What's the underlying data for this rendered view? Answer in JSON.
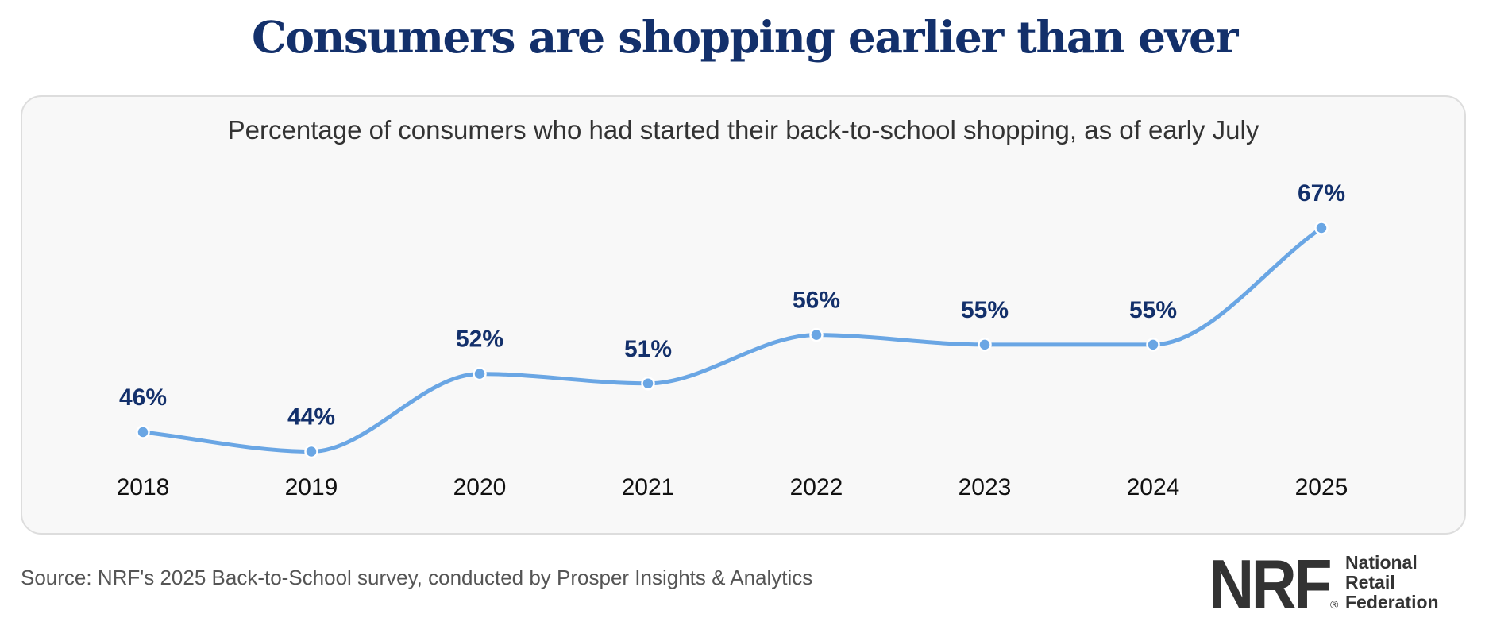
{
  "header": {
    "title": "Consumers are shopping earlier than ever"
  },
  "chart_data": {
    "type": "line",
    "subtitle": "Percentage of consumers who had started their back-to-school shopping, as of early July",
    "categories": [
      "2018",
      "2019",
      "2020",
      "2021",
      "2022",
      "2023",
      "2024",
      "2025"
    ],
    "series": [
      {
        "values": [
          46,
          44,
          52,
          51,
          56,
          55,
          55,
          67
        ],
        "data_labels": [
          "46%",
          "44%",
          "52%",
          "51%",
          "56%",
          "55%",
          "55%",
          "67%"
        ]
      }
    ],
    "ylim": [
      30,
      70
    ],
    "grid": false,
    "line_color": "#6aa6e4",
    "label_color": "#13306b"
  },
  "footer": {
    "source": "Source: NRF's 2025 Back-to-School survey, conducted by Prosper Insights & Analytics",
    "logo_mark": "NRF",
    "logo_reg": "®",
    "logo_lines": [
      "National",
      "Retail",
      "Federation"
    ]
  }
}
